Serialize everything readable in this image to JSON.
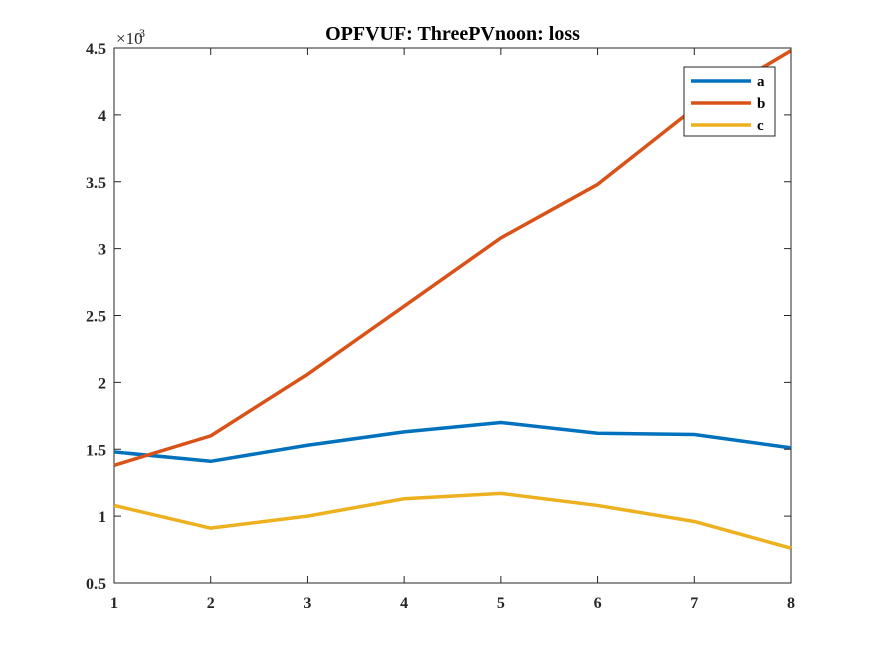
{
  "chart_data": {
    "type": "line",
    "title": "OPFVUF: ThreePVnoon: loss",
    "xlabel": "",
    "ylabel": "",
    "x": [
      1,
      2,
      3,
      4,
      5,
      6,
      7,
      8
    ],
    "xlim": [
      1,
      8
    ],
    "ylim": [
      0.5,
      4.5
    ],
    "y_exponent": {
      "base": "×10",
      "power": "-3"
    },
    "xticks": [
      "1",
      "2",
      "3",
      "4",
      "5",
      "6",
      "7",
      "8"
    ],
    "yticks": [
      "0.5",
      "1",
      "1.5",
      "2",
      "2.5",
      "3",
      "3.5",
      "4",
      "4.5"
    ],
    "grid": false,
    "legend_position": "top-right",
    "series": [
      {
        "name": "a",
        "color": "#0072BD",
        "values": [
          1.48,
          1.41,
          1.53,
          1.63,
          1.7,
          1.62,
          1.61,
          1.51
        ]
      },
      {
        "name": "b",
        "color": "#D95319",
        "values": [
          1.38,
          1.6,
          2.06,
          2.57,
          3.08,
          3.48,
          4.05,
          4.48
        ]
      },
      {
        "name": "c",
        "color": "#EDB120",
        "values": [
          1.08,
          0.91,
          1.0,
          1.13,
          1.17,
          1.08,
          0.96,
          0.76
        ]
      }
    ]
  }
}
